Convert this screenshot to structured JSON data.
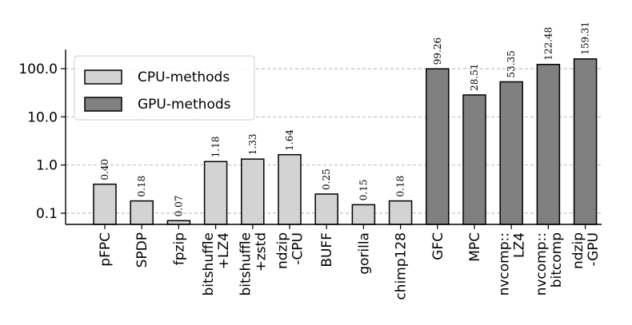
{
  "chart_data": {
    "type": "bar",
    "yscale": "log",
    "ylim": [
      0.06,
      190
    ],
    "yticks": [
      {
        "value": 0.1,
        "label": "0.1"
      },
      {
        "value": 1,
        "label": "1.0"
      },
      {
        "value": 10,
        "label": "10.0"
      },
      {
        "value": 100,
        "label": "100.0"
      }
    ],
    "grid": "y-dashed",
    "legend_position": "top-left",
    "series": [
      {
        "name": "CPU-methods",
        "color": "#d3d3d3"
      },
      {
        "name": "GPU-methods",
        "color": "#808080"
      }
    ],
    "bars": [
      {
        "label": "pFPC",
        "value": 0.4,
        "value_label": "0.40",
        "series": 0
      },
      {
        "label": "SPDP",
        "value": 0.18,
        "value_label": "0.18",
        "series": 0
      },
      {
        "label": "fpzip",
        "value": 0.07,
        "value_label": "0.07",
        "series": 0
      },
      {
        "label": "bitshuffle\n+LZ4",
        "value": 1.18,
        "value_label": "1.18",
        "series": 0
      },
      {
        "label": "bitshuffle\n+zstd",
        "value": 1.33,
        "value_label": "1.33",
        "series": 0
      },
      {
        "label": "ndzip\n-CPU",
        "value": 1.64,
        "value_label": "1.64",
        "series": 0
      },
      {
        "label": "BUFF",
        "value": 0.25,
        "value_label": "0.25",
        "series": 0
      },
      {
        "label": "gorilla",
        "value": 0.15,
        "value_label": "0.15",
        "series": 0
      },
      {
        "label": "chimp128",
        "value": 0.18,
        "value_label": "0.18",
        "series": 0
      },
      {
        "label": "GFC",
        "value": 99.26,
        "value_label": "99.26",
        "series": 1
      },
      {
        "label": "MPC",
        "value": 28.51,
        "value_label": "28.51",
        "series": 1
      },
      {
        "label": "nvcomp::\nLZ4",
        "value": 53.35,
        "value_label": "53.35",
        "series": 1
      },
      {
        "label": "nvcomp::\nbitcomp",
        "value": 122.48,
        "value_label": "122.48",
        "series": 1
      },
      {
        "label": "ndzip\n-GPU",
        "value": 159.31,
        "value_label": "159.31",
        "series": 1
      }
    ]
  }
}
